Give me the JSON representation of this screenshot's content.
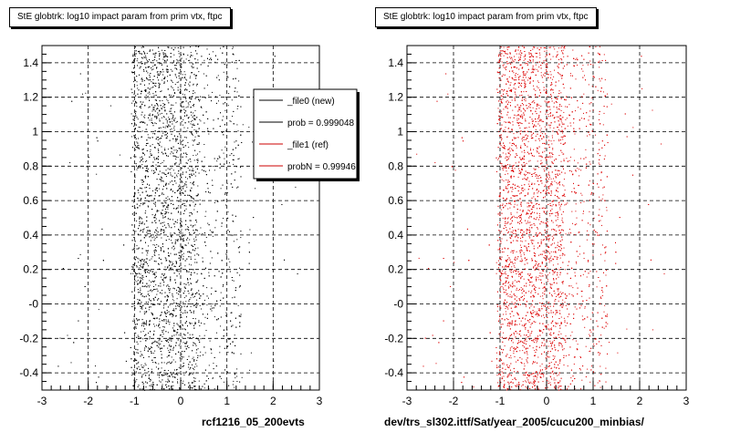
{
  "chart_data": [
    {
      "type": "scatter",
      "title": "StE globtrk: log10 impact param from prim vtx, ftpc",
      "footer": "rcf1216_05_200evts",
      "xlim": [
        -3,
        3
      ],
      "ylim": [
        -0.5,
        1.5
      ],
      "xticks": [
        "-3",
        "-2",
        "-1",
        "0",
        "1",
        "2",
        "3"
      ],
      "yticks": [
        "-0.4",
        "-0.2",
        "-0",
        "0.2",
        "0.4",
        "0.6",
        "0.8",
        "1",
        "1.2",
        "1.4"
      ],
      "grid": true,
      "color": "#000000",
      "distribution": {
        "core_x_range": [
          -1.05,
          0.35
        ],
        "tail_x_range": [
          0.35,
          1.3
        ]
      },
      "legend": {
        "position": "top-right",
        "entries": [
          {
            "label": "_file0 (new)",
            "color": "#000000"
          },
          {
            "label": "prob = 0.999048",
            "color": "#000000"
          },
          {
            "label": "_file1 (ref)",
            "color": "#cc0000"
          },
          {
            "label": "probN = 0.99946",
            "color": "#cc0000"
          }
        ]
      }
    },
    {
      "type": "scatter",
      "title": "StE globtrk: log10 impact param from prim vtx, ftpc",
      "footer": "dev/trs_sl302.ittf/Sat/year_2005/cucu200_minbias/",
      "xlim": [
        -3,
        3
      ],
      "ylim": [
        -0.5,
        1.5
      ],
      "xticks": [
        "-3",
        "-2",
        "-1",
        "0",
        "1",
        "2",
        "3"
      ],
      "yticks": [
        "-0.4",
        "-0.2",
        "-0",
        "0.2",
        "0.4",
        "0.6",
        "0.8",
        "1",
        "1.2",
        "1.4"
      ],
      "grid": true,
      "color": "#dd0000",
      "distribution": {
        "core_x_range": [
          -1.05,
          0.35
        ],
        "tail_x_range": [
          0.35,
          1.3
        ]
      }
    }
  ]
}
